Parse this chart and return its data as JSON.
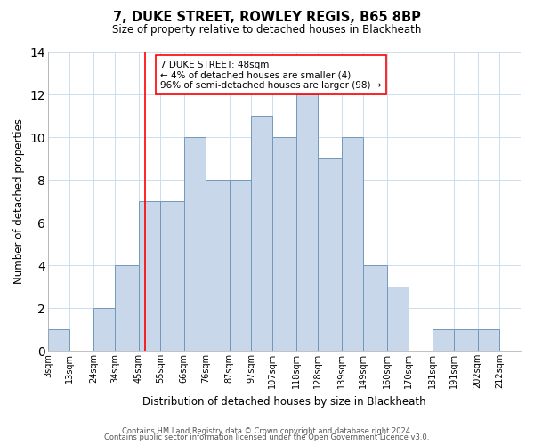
{
  "title": "7, DUKE STREET, ROWLEY REGIS, B65 8BP",
  "subtitle": "Size of property relative to detached houses in Blackheath",
  "xlabel": "Distribution of detached houses by size in Blackheath",
  "ylabel": "Number of detached properties",
  "bin_edges": [
    3,
    13,
    24,
    34,
    45,
    55,
    66,
    76,
    87,
    97,
    107,
    118,
    128,
    139,
    149,
    160,
    170,
    181,
    191,
    202,
    212,
    222
  ],
  "bar_heights": [
    1,
    0,
    2,
    4,
    7,
    7,
    10,
    8,
    8,
    11,
    10,
    12,
    9,
    10,
    4,
    3,
    0,
    1,
    1,
    1,
    0
  ],
  "bar_color": "#c8d8ea",
  "bar_edgecolor": "#7099bb",
  "red_line_x": 48,
  "ylim": [
    0,
    14
  ],
  "yticks": [
    0,
    2,
    4,
    6,
    8,
    10,
    12,
    14
  ],
  "xtick_labels": [
    "3sqm",
    "13sqm",
    "24sqm",
    "34sqm",
    "45sqm",
    "55sqm",
    "66sqm",
    "76sqm",
    "87sqm",
    "97sqm",
    "107sqm",
    "118sqm",
    "128sqm",
    "139sqm",
    "149sqm",
    "160sqm",
    "170sqm",
    "181sqm",
    "191sqm",
    "202sqm",
    "212sqm"
  ],
  "annotation_title": "7 DUKE STREET: 48sqm",
  "annotation_line1": "← 4% of detached houses are smaller (4)",
  "annotation_line2": "96% of semi-detached houses are larger (98) →",
  "footer1": "Contains HM Land Registry data © Crown copyright and database right 2024.",
  "footer2": "Contains public sector information licensed under the Open Government Licence v3.0.",
  "background_color": "#ffffff",
  "grid_color": "#ccddee"
}
